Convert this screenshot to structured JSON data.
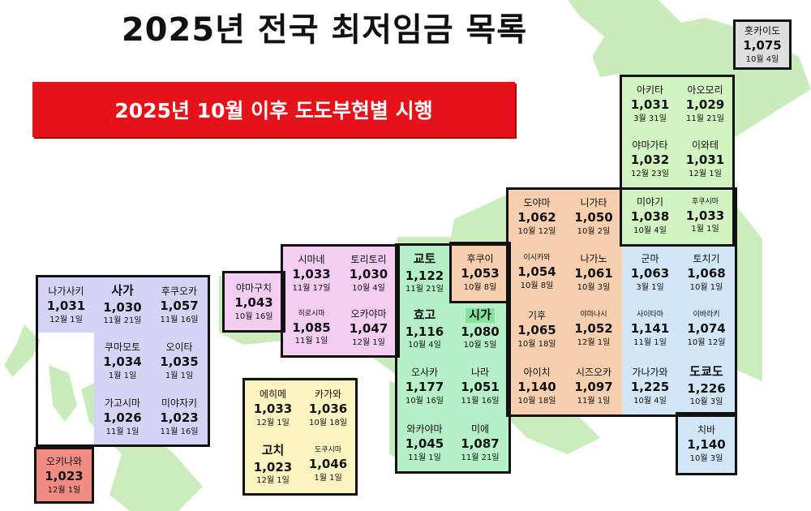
{
  "title": "2025년 전국 최저임금 목록",
  "banner": "2025년 10월 이후 도도부현별 시행",
  "colors": {
    "banner": "#e6121a",
    "kyushu": "#d6d4f6",
    "okinawa": "#f08c84",
    "shikoku": "#fbf3c0",
    "chugoku": "#f4cdf3",
    "kansai": "#b6f0c8",
    "chubu": "#f8cfae",
    "kanto": "#d3e6f8",
    "tohoku": "#d2f4c2",
    "hokkaido": "#dedede",
    "land": "#b9e6a6"
  },
  "prefs": {
    "hokkaido": {
      "name": "홋카이도",
      "wage": "1,075",
      "date": "10월 4일"
    },
    "akita": {
      "name": "아키타",
      "wage": "1,031",
      "date": "3월 31일"
    },
    "aomori": {
      "name": "아오모리",
      "wage": "1,029",
      "date": "11월 21일"
    },
    "yamagata": {
      "name": "야마가타",
      "wage": "1,032",
      "date": "12월 23일"
    },
    "iwate": {
      "name": "이와테",
      "wage": "1,031",
      "date": "12월 1일"
    },
    "miyagi": {
      "name": "미야기",
      "wage": "1,038",
      "date": "10월 4일"
    },
    "fukushima": {
      "name": "후쿠시마",
      "wage": "1,033",
      "date": "1월 1일"
    },
    "toyama": {
      "name": "도야마",
      "wage": "1,062",
      "date": "10월 12일"
    },
    "niigata": {
      "name": "니가타",
      "wage": "1,050",
      "date": "10월 2일"
    },
    "fukui": {
      "name": "후쿠이",
      "wage": "1,053",
      "date": "10월 8일"
    },
    "ishikawa": {
      "name": "이시카와",
      "wage": "1,054",
      "date": "10월 8일"
    },
    "nagano": {
      "name": "나가노",
      "wage": "1,061",
      "date": "10월 3일"
    },
    "gunma": {
      "name": "군마",
      "wage": "1,063",
      "date": "3월 1일"
    },
    "tochigi": {
      "name": "토치기",
      "wage": "1,068",
      "date": "10월 1일"
    },
    "gifu": {
      "name": "기후",
      "wage": "1,065",
      "date": "10월 18일"
    },
    "yamanashi": {
      "name": "야마나시",
      "wage": "1,052",
      "date": "12월 1일"
    },
    "saitama": {
      "name": "사이타마",
      "wage": "1,141",
      "date": "11월 1일"
    },
    "ibaraki": {
      "name": "이바라키",
      "wage": "1,074",
      "date": "10월 12일"
    },
    "aichi": {
      "name": "아이치",
      "wage": "1,140",
      "date": "10월 18일"
    },
    "shizuoka": {
      "name": "시즈오카",
      "wage": "1,097",
      "date": "11월 1일"
    },
    "kanagawa": {
      "name": "가나가와",
      "wage": "1,225",
      "date": "10월 4일"
    },
    "tokyo": {
      "name": "도쿄도",
      "wage": "1,226",
      "date": "10월 3일"
    },
    "chiba": {
      "name": "치바",
      "wage": "1,140",
      "date": "10월 3일"
    },
    "kyoto": {
      "name": "교토",
      "wage": "1,122",
      "date": "11월 21일"
    },
    "hyogo": {
      "name": "효고",
      "wage": "1,116",
      "date": "10월 4일"
    },
    "shiga": {
      "name": "시가",
      "wage": "1,080",
      "date": "10월 5일"
    },
    "osaka": {
      "name": "오사카",
      "wage": "1,177",
      "date": "10월 16일"
    },
    "nara": {
      "name": "나라",
      "wage": "1,051",
      "date": "11월 16일"
    },
    "wakayama": {
      "name": "와카야마",
      "wage": "1,045",
      "date": "11월 1일"
    },
    "mie": {
      "name": "미에",
      "wage": "1,087",
      "date": "11월 21일"
    },
    "shimane": {
      "name": "시마네",
      "wage": "1,033",
      "date": "11월 17일"
    },
    "tottori": {
      "name": "토리토리",
      "wage": "1,030",
      "date": "10월 4일"
    },
    "yamaguchi": {
      "name": "야마구치",
      "wage": "1,043",
      "date": "10월 16일"
    },
    "hiroshima": {
      "name": "히로시마",
      "wage": "1,085",
      "date": "11월 1일"
    },
    "okayama": {
      "name": "오카야마",
      "wage": "1,047",
      "date": "12월 1일"
    },
    "ehime": {
      "name": "에히메",
      "wage": "1,033",
      "date": "12월 1일"
    },
    "kagawa": {
      "name": "카가와",
      "wage": "1,036",
      "date": "10월 18일"
    },
    "kochi": {
      "name": "고치",
      "wage": "1,023",
      "date": "12월 1일"
    },
    "tokushima": {
      "name": "도쿠시마",
      "wage": "1,046",
      "date": "1월 1일"
    },
    "nagasaki": {
      "name": "나가사키",
      "wage": "1,031",
      "date": "12월 1일"
    },
    "saga": {
      "name": "사가",
      "wage": "1,030",
      "date": "11월 21일"
    },
    "fukuoka": {
      "name": "후쿠오카",
      "wage": "1,057",
      "date": "11월 16일"
    },
    "kumamoto": {
      "name": "쿠마모토",
      "wage": "1,034",
      "date": "1월 1일"
    },
    "oita": {
      "name": "오이타",
      "wage": "1,035",
      "date": "1월 1일"
    },
    "kagoshima": {
      "name": "가고시마",
      "wage": "1,026",
      "date": "11월 1일"
    },
    "miyazaki": {
      "name": "미야자키",
      "wage": "1,023",
      "date": "11월 16일"
    },
    "okinawa": {
      "name": "오키나와",
      "wage": "1,023",
      "date": "12월 1일"
    }
  }
}
